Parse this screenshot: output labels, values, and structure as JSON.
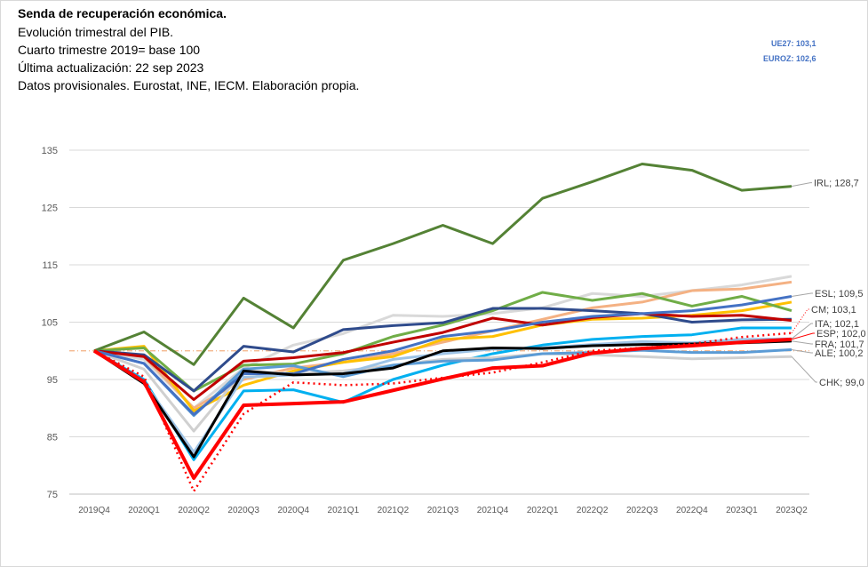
{
  "header": {
    "title": "Senda de recuperación económica.",
    "line1": "Evolución trimestral del PIB.",
    "line2": "Cuarto trimestre 2019= base 100",
    "line3": "Última actualización: 22 sep 2023",
    "line4": "Datos provisionales. Eurostat, INE, IECM. Elaboración propia."
  },
  "notes": {
    "ue27": "UE27: 103,1",
    "euroz": "EUROZ: 102,6"
  },
  "chart_data": {
    "type": "line",
    "title": "Senda de recuperación económica.",
    "xlabel": "",
    "ylabel": "",
    "ylim": [
      75,
      135
    ],
    "yticks": [
      "75",
      "85",
      "95",
      "105",
      "115",
      "125",
      "135"
    ],
    "categories": [
      "2019Q4",
      "2020Q1",
      "2020Q2",
      "2020Q3",
      "2020Q4",
      "2021Q1",
      "2021Q2",
      "2021Q3",
      "2021Q4",
      "2022Q1",
      "2022Q2",
      "2022Q3",
      "2022Q4",
      "2023Q1",
      "2023Q2"
    ],
    "grid": true,
    "series": [
      {
        "name": "grey-a",
        "color": "#d9d9d9",
        "width": 3,
        "values": [
          100,
          98.5,
          90,
          97,
          101,
          103,
          106.2,
          106,
          106.5,
          107.5,
          110,
          109.5,
          110.5,
          111.5,
          113
        ]
      },
      {
        "name": "orange-a",
        "color": "#f4b183",
        "width": 3,
        "values": [
          100,
          99,
          90,
          95,
          97,
          98,
          99.5,
          101.5,
          103.5,
          105.5,
          107.5,
          108.5,
          110.5,
          110.8,
          112
        ]
      },
      {
        "name": "yellow-a",
        "color": "#ffc000",
        "width": 3,
        "values": [
          100,
          100.8,
          89.5,
          94,
          96.5,
          98,
          99,
          102,
          102.5,
          104.5,
          105.5,
          105.7,
          106.2,
          107,
          108.5
        ]
      },
      {
        "name": "green-a",
        "color": "#70ad47",
        "width": 3,
        "values": [
          100,
          100.5,
          93,
          97.5,
          97.7,
          99.5,
          102.5,
          104.5,
          107,
          110.2,
          108.8,
          110,
          107.8,
          109.5,
          107
        ]
      },
      {
        "name": "navy-a",
        "color": "#2f4b8c",
        "width": 3,
        "values": [
          100,
          99.3,
          93,
          100.8,
          99.8,
          103.7,
          104.4,
          104.9,
          107.4,
          107.4,
          107,
          106.5,
          105,
          105.4,
          105.5
        ]
      },
      {
        "name": "darkred-a",
        "color": "#c00000",
        "width": 3,
        "values": [
          100,
          99,
          91.5,
          98.2,
          98.8,
          99.7,
          101.5,
          103.2,
          105.7,
          104.5,
          105.8,
          106.5,
          106,
          106.2,
          105.3
        ]
      },
      {
        "name": "sky-a",
        "color": "#00b0f0",
        "width": 3,
        "values": [
          100,
          95,
          81,
          93,
          93.2,
          91,
          95,
          97.5,
          99.5,
          101,
          102,
          102.5,
          102.8,
          104,
          104
        ]
      },
      {
        "name": "CHK",
        "label": "CHK; 99,0",
        "color": "#d0d0d0",
        "width": 3,
        "values": [
          100,
          96.8,
          86,
          96.5,
          96,
          96.5,
          97.5,
          98.5,
          98.8,
          99.5,
          99.3,
          99,
          98.6,
          98.8,
          99
        ]
      },
      {
        "name": "ALE",
        "label": "ALE; 100,2",
        "color": "#5b9bd5",
        "width": 3,
        "values": [
          100,
          97.8,
          88.7,
          96.8,
          97.4,
          95.5,
          97.5,
          98.2,
          98.4,
          99.5,
          99.7,
          100.1,
          99.7,
          99.7,
          100.2
        ]
      },
      {
        "name": "ESL",
        "label": "ESL; 109,5",
        "color": "#4472c4",
        "width": 3,
        "values": [
          100,
          97.8,
          88.9,
          96,
          96,
          98.5,
          100,
          102.5,
          103.5,
          105,
          106,
          106.5,
          107,
          108,
          109.5
        ]
      },
      {
        "name": "ITA",
        "label": "ITA; 102,1",
        "color": "#9dc3e6",
        "width": 3,
        "values": [
          100,
          94.5,
          82.3,
          95.4,
          95.8,
          96,
          98.5,
          99.5,
          100.3,
          100.5,
          101.1,
          101.6,
          101.4,
          102,
          102.1
        ]
      },
      {
        "name": "FRA",
        "label": "FRA; 101,7",
        "color": "#000000",
        "width": 3,
        "values": [
          100,
          94.3,
          81.5,
          96.5,
          95.8,
          96,
          97,
          100,
          100.5,
          100.4,
          100.9,
          101.1,
          101.2,
          101.4,
          101.7
        ]
      },
      {
        "name": "IRL",
        "label": "IRL; 128,7",
        "color": "#548235",
        "width": 3,
        "values": [
          100,
          103.3,
          97.6,
          109.2,
          104,
          115.8,
          118.7,
          121.9,
          118.7,
          126.6,
          129.5,
          132.6,
          131.5,
          128,
          128.7
        ]
      },
      {
        "name": "CM",
        "label": "CM; 103,1",
        "color": "#ff0000",
        "width": 2.5,
        "dash": "2,4",
        "values": [
          100,
          95.5,
          75.5,
          89,
          94.5,
          94,
          94.3,
          95.3,
          96.2,
          98,
          100,
          100.5,
          101.2,
          102.4,
          103.1
        ]
      },
      {
        "name": "ESP",
        "label": "ESP; 102,0",
        "color": "#ff0000",
        "width": 4,
        "values": [
          100,
          94.6,
          77.8,
          90.5,
          90.8,
          91.1,
          93.1,
          95.1,
          97,
          97.4,
          99.6,
          100.4,
          100.9,
          101.5,
          102
        ]
      }
    ],
    "reference_line": 100
  }
}
